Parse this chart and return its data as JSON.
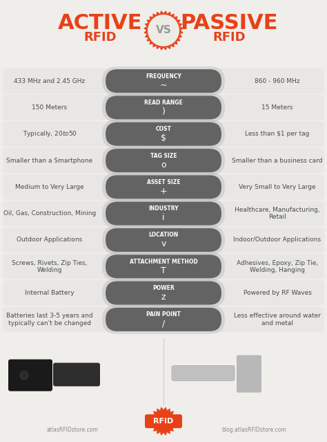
{
  "bg_color": "#f0eeeb",
  "title_color": "#e84118",
  "vs_border_color": "#e84118",
  "vs_fill_color": "#eeebe4",
  "vs_text_color": "#999999",
  "center_pill_color": "#636363",
  "row_bg_color": "#e2e2e2",
  "left_color": "#4a4a4a",
  "right_color": "#4a4a4a",
  "pill_label_color": "#ffffff",
  "pill_icon_color": "#ffffff",
  "rows": [
    {
      "label": "FREQUENCY",
      "left": "433 MHz and 2.45 GHz",
      "right": "860 - 960 MHz"
    },
    {
      "label": "READ RANGE",
      "left": "150 Meters",
      "right": "15 Meters"
    },
    {
      "label": "COST",
      "left": "Typically, $20 to $50",
      "right": "Less than $1 per tag"
    },
    {
      "label": "TAG SIZE",
      "left": "Smaller than a Smartphone",
      "right": "Smaller than a business card"
    },
    {
      "label": "ASSET SIZE",
      "left": "Medium to Very Large",
      "right": "Very Small to Very Large"
    },
    {
      "label": "INDUSTRY",
      "left": "Oil, Gas, Construction, Mining",
      "right": "Healthcare, Manufacturing, Retail"
    },
    {
      "label": "LOCATION",
      "left": "Outdoor Applications",
      "right": "Indoor/Outdoor Applications"
    },
    {
      "label": "ATTACHMENT METHOD",
      "left": "Screws, Rivets, Zip Ties, Welding",
      "right": "Adhesives, Epoxy, Zip Tie, Welding, Hanging"
    },
    {
      "label": "POWER",
      "left": "Internal Battery",
      "right": "Powered by RF Waves"
    },
    {
      "label": "PAIN POINT",
      "left": "Batteries last 3-5 years and typically can't be changed",
      "right": "Less effective around water and metal"
    }
  ],
  "footer_left": "atlasRFIDstore.com",
  "footer_right": "blog.atlasRFIDstore.com"
}
